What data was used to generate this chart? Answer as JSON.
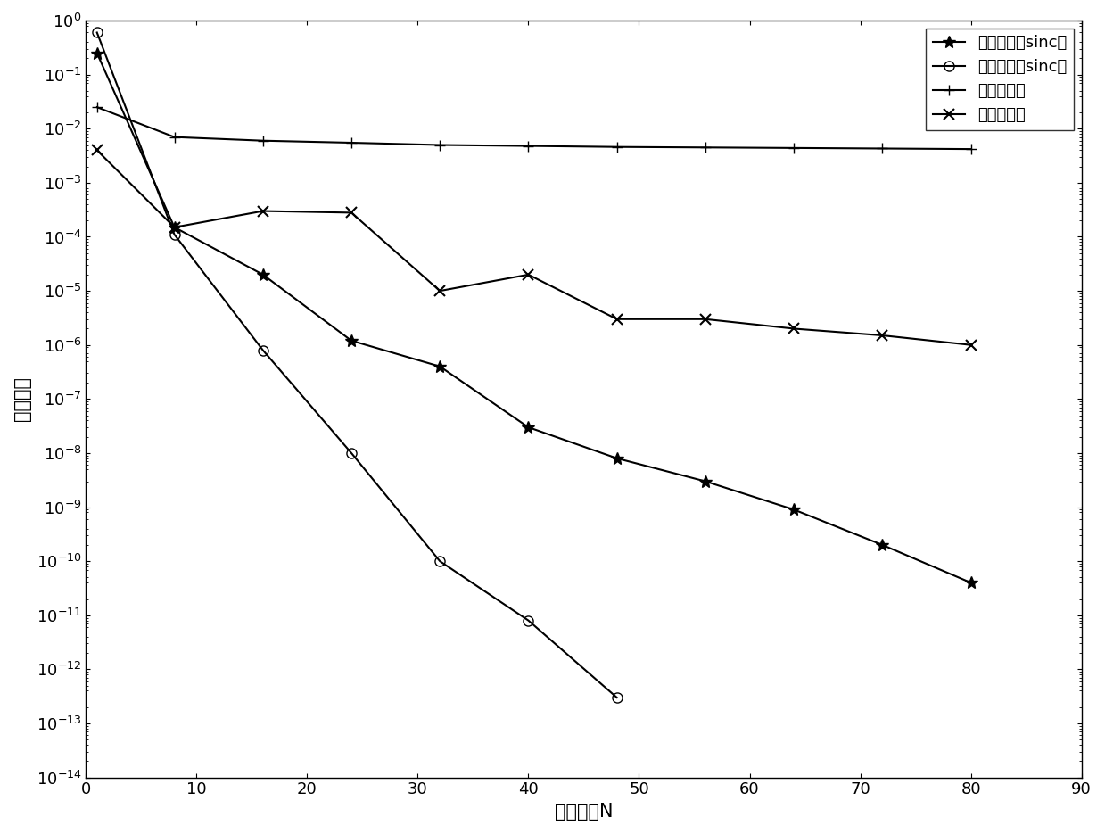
{
  "title": "",
  "xlabel": "采样点数N",
  "ylabel": "最大误差",
  "xlim": [
    0,
    90
  ],
  "ylim_log": [
    -14,
    0
  ],
  "background_color": "#ffffff",
  "series": [
    {
      "name": "单指数变换sinc法",
      "marker": "*",
      "x": [
        1,
        8,
        16,
        24,
        32,
        40,
        48,
        56,
        64,
        72,
        80
      ],
      "y": [
        0.25,
        0.00015,
        2e-05,
        1.2e-06,
        4e-07,
        3e-08,
        8e-09,
        3e-09,
        9e-10,
        2e-10,
        4e-11
      ]
    },
    {
      "name": "双指数变换sinc法",
      "marker": "o",
      "x": [
        1,
        8,
        16,
        24,
        32,
        40,
        48
      ],
      "y": [
        0.6,
        0.00011,
        8e-07,
        1e-08,
        1e-10,
        8e-12,
        3e-13
      ]
    },
    {
      "name": "后退欧拉法",
      "marker": "+",
      "x": [
        1,
        8,
        16,
        24,
        32,
        40,
        48,
        56,
        64,
        72,
        80
      ],
      "y": [
        0.025,
        0.007,
        0.006,
        0.0055,
        0.005,
        0.0048,
        0.0046,
        0.0045,
        0.0044,
        0.0043,
        0.0042
      ]
    },
    {
      "name": "中心差分法",
      "marker": "x",
      "x": [
        1,
        8,
        16,
        24,
        32,
        40,
        48,
        56,
        64,
        72,
        80
      ],
      "y": [
        0.004,
        0.00015,
        0.0003,
        0.00028,
        1e-05,
        2e-05,
        3e-06,
        3e-06,
        2e-06,
        1.5e-06,
        1e-06
      ]
    }
  ],
  "line_color": "#000000",
  "markersize": 8,
  "linewidth": 1.5,
  "legend_fontsize": 13,
  "axis_fontsize": 15,
  "tick_fontsize": 13
}
